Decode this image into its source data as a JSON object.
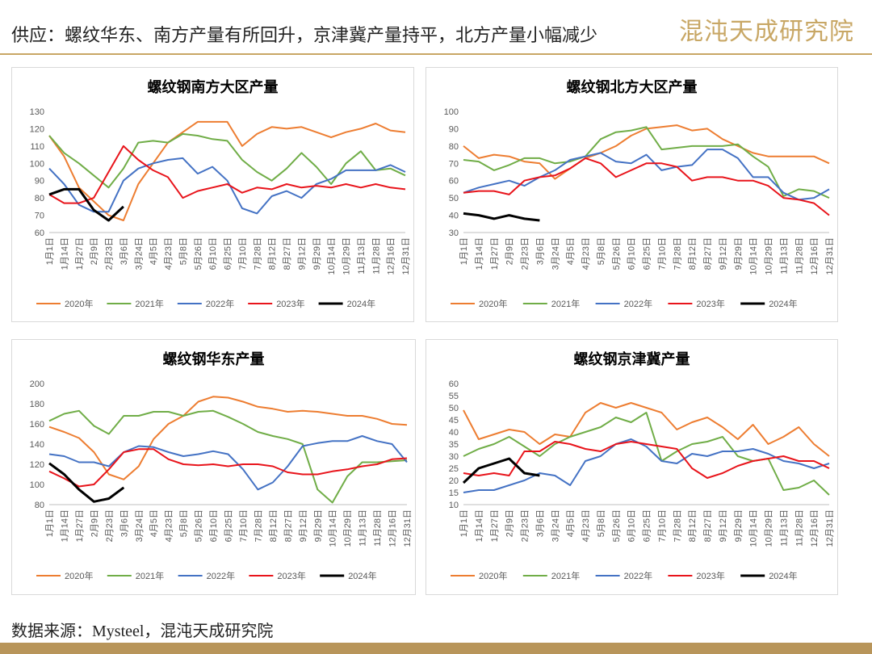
{
  "header": {
    "title": "供应：螺纹华东、南方产量有所回升，京津冀产量持平，北方产量小幅减少",
    "logo": "混沌天成研究院"
  },
  "footer": {
    "source": "数据来源：Mysteel，混沌天成研究院"
  },
  "chart_data": [
    {
      "type": "line",
      "title": "螺纹钢南方大区产量",
      "grid": false,
      "categories": [
        "1月1日",
        "1月14日",
        "1月27日",
        "2月9日",
        "2月23日",
        "3月6日",
        "3月24日",
        "4月5日",
        "4月23日",
        "5月8日",
        "5月26日",
        "6月10日",
        "6月25日",
        "7月10日",
        "7月28日",
        "8月12日",
        "8月27日",
        "9月12日",
        "9月29日",
        "10月14日",
        "10月29日",
        "11月13日",
        "11月28日",
        "12月16日",
        "12月31日"
      ],
      "ylim": [
        60,
        130
      ],
      "yticks": [
        60,
        70,
        80,
        90,
        100,
        110,
        120,
        130
      ],
      "series": [
        {
          "name": "2020年",
          "color": "#ed7d31",
          "values": [
            116,
            104,
            86,
            78,
            70,
            67,
            88,
            100,
            112,
            118,
            124,
            124,
            124,
            110,
            117,
            121,
            120,
            121,
            118,
            115,
            118,
            120,
            123,
            119,
            118
          ]
        },
        {
          "name": "2021年",
          "color": "#70ad47",
          "values": [
            116,
            106,
            100,
            93,
            86,
            97,
            112,
            113,
            112,
            117,
            116,
            114,
            113,
            102,
            95,
            90,
            97,
            106,
            98,
            88,
            100,
            107,
            96,
            97,
            93
          ]
        },
        {
          "name": "2022年",
          "color": "#4472c4",
          "values": [
            97,
            88,
            76,
            72,
            72,
            90,
            97,
            100,
            102,
            103,
            94,
            98,
            90,
            74,
            71,
            81,
            84,
            80,
            88,
            91,
            96,
            96,
            96,
            99,
            95
          ]
        },
        {
          "name": "2023年",
          "color": "#e8141b",
          "values": [
            82,
            77,
            77,
            80,
            95,
            110,
            102,
            96,
            92,
            80,
            84,
            86,
            88,
            83,
            86,
            85,
            88,
            86,
            87,
            86,
            88,
            86,
            88,
            86,
            85
          ]
        },
        {
          "name": "2024年",
          "color": "#000000",
          "values": [
            82,
            85,
            85,
            73,
            67,
            75,
            null,
            null,
            null,
            null,
            null,
            null,
            null,
            null,
            null,
            null,
            null,
            null,
            null,
            null,
            null,
            null,
            null,
            null,
            null
          ]
        }
      ]
    },
    {
      "type": "line",
      "title": "螺纹钢北方大区产量",
      "grid": false,
      "categories": [
        "1月1日",
        "1月14日",
        "1月27日",
        "2月9日",
        "2月23日",
        "3月6日",
        "3月24日",
        "4月5日",
        "4月23日",
        "5月8日",
        "5月26日",
        "6月10日",
        "6月25日",
        "7月10日",
        "7月28日",
        "8月12日",
        "8月27日",
        "9月12日",
        "9月29日",
        "10月14日",
        "10月29日",
        "11月13日",
        "11月28日",
        "12月16日",
        "12月31日"
      ],
      "ylim": [
        30,
        100
      ],
      "yticks": [
        30,
        40,
        50,
        60,
        70,
        80,
        90,
        100
      ],
      "series": [
        {
          "name": "2020年",
          "color": "#ed7d31",
          "values": [
            80,
            73,
            75,
            74,
            71,
            70,
            61,
            67,
            73,
            76,
            80,
            86,
            90,
            91,
            92,
            89,
            90,
            84,
            80,
            76,
            74,
            74,
            74,
            74,
            70
          ]
        },
        {
          "name": "2021年",
          "color": "#70ad47",
          "values": [
            72,
            71,
            66,
            69,
            73,
            73,
            70,
            71,
            74,
            84,
            88,
            89,
            91,
            78,
            79,
            80,
            80,
            80,
            81,
            74,
            68,
            51,
            55,
            54,
            50
          ]
        },
        {
          "name": "2022年",
          "color": "#4472c4",
          "values": [
            53,
            56,
            58,
            60,
            57,
            62,
            66,
            72,
            74,
            76,
            71,
            70,
            75,
            66,
            68,
            69,
            78,
            78,
            73,
            62,
            62,
            53,
            49,
            50,
            55
          ]
        },
        {
          "name": "2023年",
          "color": "#e8141b",
          "values": [
            53,
            54,
            54,
            52,
            60,
            62,
            63,
            67,
            73,
            70,
            62,
            66,
            70,
            70,
            68,
            60,
            62,
            62,
            60,
            60,
            57,
            50,
            49,
            47,
            40
          ]
        },
        {
          "name": "2024年",
          "color": "#000000",
          "values": [
            41,
            40,
            38,
            40,
            38,
            37,
            null,
            null,
            null,
            null,
            null,
            null,
            null,
            null,
            null,
            null,
            null,
            null,
            null,
            null,
            null,
            null,
            null,
            null,
            null
          ]
        }
      ]
    },
    {
      "type": "line",
      "title": "螺纹钢华东产量",
      "grid": false,
      "categories": [
        "1月1日",
        "1月14日",
        "1月27日",
        "2月9日",
        "2月23日",
        "3月6日",
        "3月24日",
        "4月5日",
        "4月23日",
        "5月8日",
        "5月26日",
        "6月10日",
        "6月25日",
        "7月10日",
        "7月28日",
        "8月12日",
        "8月27日",
        "9月12日",
        "9月29日",
        "10月14日",
        "10月29日",
        "11月13日",
        "11月28日",
        "12月16日",
        "12月31日"
      ],
      "ylim": [
        80,
        200
      ],
      "yticks": [
        80,
        100,
        120,
        140,
        160,
        180,
        200
      ],
      "series": [
        {
          "name": "2020年",
          "color": "#ed7d31",
          "values": [
            157,
            152,
            146,
            132,
            110,
            105,
            118,
            145,
            160,
            168,
            182,
            187,
            186,
            182,
            177,
            175,
            172,
            173,
            172,
            170,
            168,
            168,
            165,
            160,
            159
          ]
        },
        {
          "name": "2021年",
          "color": "#70ad47",
          "values": [
            163,
            170,
            173,
            158,
            150,
            168,
            168,
            172,
            172,
            168,
            172,
            173,
            167,
            160,
            152,
            148,
            145,
            140,
            95,
            82,
            108,
            122,
            122,
            123,
            124
          ]
        },
        {
          "name": "2022年",
          "color": "#4472c4",
          "values": [
            130,
            128,
            122,
            122,
            118,
            132,
            138,
            137,
            132,
            128,
            130,
            133,
            130,
            115,
            95,
            102,
            118,
            138,
            141,
            143,
            143,
            148,
            143,
            140,
            122
          ]
        },
        {
          "name": "2023年",
          "color": "#e8141b",
          "values": [
            113,
            106,
            98,
            100,
            115,
            132,
            135,
            135,
            125,
            120,
            119,
            120,
            118,
            120,
            120,
            118,
            112,
            110,
            110,
            113,
            115,
            118,
            120,
            125,
            126
          ]
        },
        {
          "name": "2024年",
          "color": "#000000",
          "values": [
            121,
            110,
            95,
            83,
            86,
            97,
            null,
            null,
            null,
            null,
            null,
            null,
            null,
            null,
            null,
            null,
            null,
            null,
            null,
            null,
            null,
            null,
            null,
            null,
            null
          ]
        }
      ]
    },
    {
      "type": "line",
      "title": "螺纹钢京津冀产量",
      "grid": false,
      "categories": [
        "1月1日",
        "1月14日",
        "1月27日",
        "2月9日",
        "2月23日",
        "3月6日",
        "3月24日",
        "4月5日",
        "4月23日",
        "5月8日",
        "5月26日",
        "6月10日",
        "6月25日",
        "7月10日",
        "7月28日",
        "8月12日",
        "8月27日",
        "9月12日",
        "9月29日",
        "10月14日",
        "10月29日",
        "11月13日",
        "11月28日",
        "12月16日",
        "12月31日"
      ],
      "ylim": [
        10,
        60
      ],
      "yticks": [
        10,
        15,
        20,
        25,
        30,
        35,
        40,
        45,
        50,
        55,
        60
      ],
      "series": [
        {
          "name": "2020年",
          "color": "#ed7d31",
          "values": [
            49,
            37,
            39,
            41,
            40,
            35,
            39,
            38,
            48,
            52,
            50,
            52,
            50,
            48,
            41,
            44,
            46,
            42,
            37,
            43,
            35,
            38,
            42,
            35,
            30
          ]
        },
        {
          "name": "2021年",
          "color": "#70ad47",
          "values": [
            30,
            33,
            35,
            38,
            34,
            30,
            35,
            38,
            40,
            42,
            46,
            44,
            48,
            28,
            32,
            35,
            36,
            38,
            30,
            28,
            29,
            16,
            17,
            20,
            14
          ]
        },
        {
          "name": "2022年",
          "color": "#4472c4",
          "values": [
            15,
            16,
            16,
            18,
            20,
            23,
            22,
            18,
            28,
            30,
            35,
            37,
            34,
            28,
            27,
            31,
            30,
            32,
            32,
            33,
            31,
            28,
            27,
            25,
            27
          ]
        },
        {
          "name": "2023年",
          "color": "#e8141b",
          "values": [
            23,
            22,
            23,
            22,
            32,
            32,
            36,
            35,
            33,
            32,
            35,
            36,
            35,
            34,
            33,
            25,
            21,
            23,
            26,
            28,
            29,
            30,
            28,
            28,
            25
          ]
        },
        {
          "name": "2024年",
          "color": "#000000",
          "values": [
            19,
            25,
            27,
            29,
            23,
            22,
            null,
            null,
            null,
            null,
            null,
            null,
            null,
            null,
            null,
            null,
            null,
            null,
            null,
            null,
            null,
            null,
            null,
            null,
            null
          ]
        }
      ]
    }
  ]
}
